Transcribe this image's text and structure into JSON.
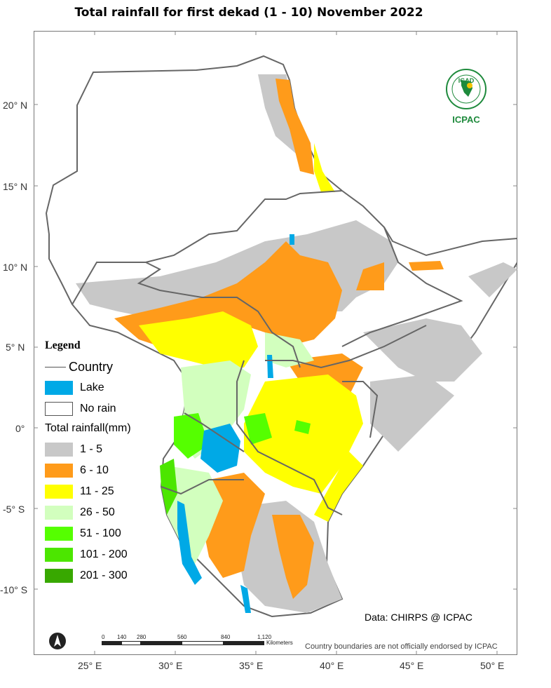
{
  "map": {
    "title": "Total rainfall  for  first  dekad (1 - 10)  November 2022",
    "lat_labels": [
      "20° N",
      "15° N",
      "10° N",
      "5° N",
      "0°",
      "-5° S",
      "-10° S"
    ],
    "lon_labels": [
      "25° E",
      "30° E",
      "35° E",
      "40° E",
      "45° E",
      "50° E"
    ],
    "legend": {
      "title": "Legend",
      "country": "Country",
      "lake": "Lake",
      "no_rain": "No rain",
      "subheading": "Total rainfall(mm)",
      "classes": [
        {
          "label": "1 - 5",
          "color": "#c8c8c8"
        },
        {
          "label": "6 - 10",
          "color": "#ff9b1a"
        },
        {
          "label": "11 - 25",
          "color": "#ffff00"
        },
        {
          "label": "26 - 50",
          "color": "#d2ffbe"
        },
        {
          "label": "51 - 100",
          "color": "#55ff00"
        },
        {
          "label": "101 - 200",
          "color": "#4ce600"
        },
        {
          "label": "201 - 300",
          "color": "#38a800"
        }
      ],
      "lake_color": "#00a9e6"
    },
    "scalebar": {
      "labels": [
        "0",
        "140",
        "280",
        "560",
        "840",
        "1,120"
      ],
      "unit": "Kilometers"
    },
    "credit": "Data: CHIRPS @ ICPAC",
    "disclaimer": "Country boundaries are not officially endorsed by ICPAC",
    "logo": {
      "top_text": "IGAD",
      "bottom_text": "ICPAC"
    }
  }
}
